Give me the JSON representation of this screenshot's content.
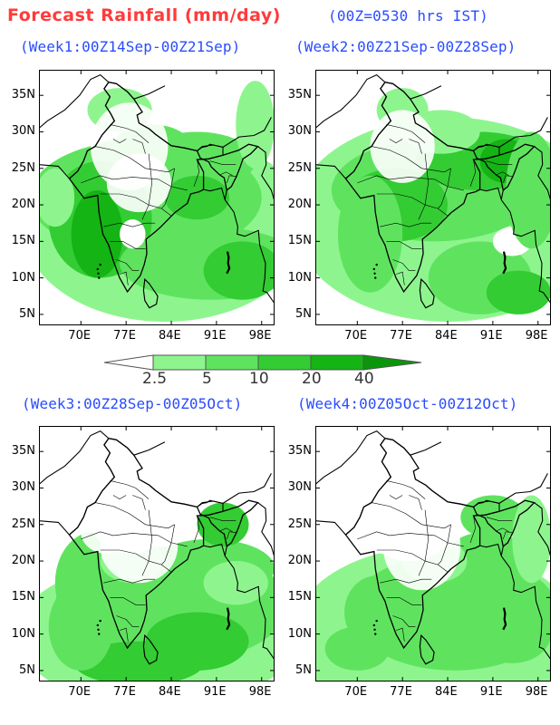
{
  "header": {
    "title": "Forecast Rainfall (mm/day)",
    "title_color": "#ff3b3b",
    "ist_note": "(00Z=0530 hrs IST)",
    "ist_color": "#2a4cff"
  },
  "panels": [
    {
      "title": "(Week1:00Z14Sep-00Z21Sep)"
    },
    {
      "title": "(Week2:00Z21Sep-00Z28Sep)"
    },
    {
      "title": "(Week3:00Z28Sep-00Z05Oct)"
    },
    {
      "title": "(Week4:00Z05Oct-00Z12Oct)"
    }
  ],
  "panel_title_color": "#2a4cff",
  "axes": {
    "lat_labels": [
      "35N",
      "30N",
      "25N",
      "20N",
      "15N",
      "10N",
      "5N"
    ],
    "lon_labels": [
      "70E",
      "77E",
      "84E",
      "91E",
      "98E"
    ]
  },
  "legend": {
    "labels": [
      "2.5",
      "5",
      "10",
      "20",
      "40"
    ],
    "colors": [
      "#ffffff",
      "#8ef58e",
      "#5fe35f",
      "#33cc33",
      "#14b414",
      "#0a960a"
    ]
  }
}
